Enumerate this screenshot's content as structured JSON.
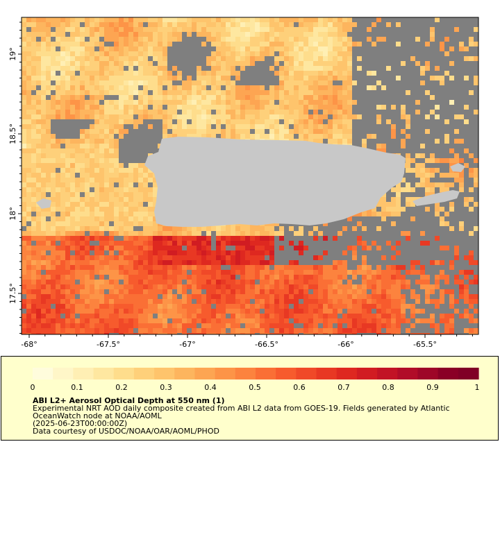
{
  "map": {
    "lat_labels": [
      "19°",
      "18.5°",
      "18°",
      "17.5°"
    ],
    "lat_values": [
      19.0,
      18.5,
      18.0,
      17.5
    ],
    "lon_labels": [
      "-68°",
      "-67.5°",
      "-67°",
      "-66.5°",
      "-66°",
      "-65.5°"
    ],
    "lon_values": [
      -68.0,
      -67.5,
      -67.0,
      -66.5,
      -66.0,
      -65.5
    ],
    "lon_range": [
      -68.05,
      -65.18
    ],
    "lat_range": [
      17.26,
      19.25
    ],
    "missing_color": "#7f7f7f",
    "land_color": "#c8c8c8",
    "frame_color": "#000000"
  },
  "colorbar": {
    "tick_labels": [
      "0",
      "0.1",
      "0.2",
      "0.3",
      "0.4",
      "0.5",
      "0.6",
      "0.7",
      "0.8",
      "0.9",
      "1"
    ],
    "range": [
      0,
      1
    ],
    "colors": [
      "#fffcdc",
      "#fff6c8",
      "#ffefb4",
      "#fee7a0",
      "#fedd8c",
      "#fed07a",
      "#fec46c",
      "#fdb55e",
      "#fda552",
      "#fd9447",
      "#fc833e",
      "#fa6f35",
      "#f75b2d",
      "#f04928",
      "#e83823",
      "#de2820",
      "#d11c22",
      "#c21325",
      "#b10c28",
      "#9e0628",
      "#8a0026",
      "#800026"
    ]
  },
  "legend": {
    "title": "ABI L2+ Aerosol Optical Depth at 550 nm (1)",
    "line1": "Experimental NRT AOD daily composite created from ABI L2 data from GOES-19. Fields generated by Atlantic",
    "line2": "OceanWatch node at NOAA/AOML",
    "line3": "(2025-06-23T00:00:00Z)",
    "line4": "Data courtesy of USDOC/NOAA/OAR/AOML/PHOD",
    "background": "#ffffcc"
  }
}
